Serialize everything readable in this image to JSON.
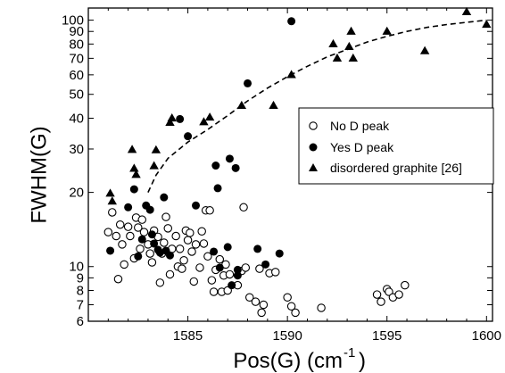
{
  "chart_data": {
    "type": "scatter",
    "xlabel": "Pos(G) (cm",
    "xlabel_sup": "-1",
    "xlabel_close": ")",
    "ylabel": "FWHM(G)",
    "xlim": [
      1580,
      1600.3
    ],
    "ylim": [
      6,
      112
    ],
    "y_scale": "log",
    "x_ticks": [
      "1585",
      "1590",
      "1595",
      "1600"
    ],
    "x_tick_values": [
      1585,
      1590,
      1595,
      1600
    ],
    "y_ticks": [
      "6",
      "7",
      "8",
      "9",
      "10",
      "20",
      "30",
      "40",
      "50",
      "60",
      "70",
      "80",
      "90",
      "100"
    ],
    "y_tick_values": [
      6,
      7,
      8,
      9,
      10,
      20,
      30,
      40,
      50,
      60,
      70,
      80,
      90,
      100
    ],
    "grid": false,
    "legend_position": "right",
    "series": [
      {
        "name": "No D peak",
        "marker": "open-circle",
        "color": "#000000",
        "points": [
          [
            1581.0,
            13.8
          ],
          [
            1581.2,
            16.6
          ],
          [
            1581.4,
            13.3
          ],
          [
            1581.5,
            8.9
          ],
          [
            1581.6,
            14.8
          ],
          [
            1581.7,
            12.3
          ],
          [
            1581.8,
            10.2
          ],
          [
            1582.0,
            14.5
          ],
          [
            1582.1,
            13.3
          ],
          [
            1582.3,
            10.8
          ],
          [
            1582.4,
            15.8
          ],
          [
            1582.5,
            14.4
          ],
          [
            1582.6,
            11.8
          ],
          [
            1582.7,
            15.5
          ],
          [
            1582.8,
            13.8
          ],
          [
            1583.0,
            12.3
          ],
          [
            1583.1,
            11.3
          ],
          [
            1583.2,
            10.4
          ],
          [
            1583.3,
            14.0
          ],
          [
            1583.5,
            13.2
          ],
          [
            1583.6,
            8.6
          ],
          [
            1583.7,
            11.3
          ],
          [
            1583.8,
            12.5
          ],
          [
            1583.9,
            15.9
          ],
          [
            1584.0,
            14.3
          ],
          [
            1584.1,
            9.3
          ],
          [
            1584.2,
            11.8
          ],
          [
            1584.4,
            13.3
          ],
          [
            1584.5,
            10.0
          ],
          [
            1584.6,
            11.8
          ],
          [
            1584.7,
            9.8
          ],
          [
            1584.8,
            10.6
          ],
          [
            1584.9,
            14.0
          ],
          [
            1585.0,
            12.8
          ],
          [
            1585.1,
            13.7
          ],
          [
            1585.2,
            11.5
          ],
          [
            1585.3,
            8.7
          ],
          [
            1585.4,
            12.3
          ],
          [
            1585.6,
            9.9
          ],
          [
            1585.7,
            13.9
          ],
          [
            1585.8,
            12.4
          ],
          [
            1585.9,
            16.9
          ],
          [
            1586.0,
            11.0
          ],
          [
            1586.1,
            16.9
          ],
          [
            1586.2,
            8.8
          ],
          [
            1586.3,
            7.9
          ],
          [
            1586.4,
            9.7
          ],
          [
            1586.6,
            10.7
          ],
          [
            1586.7,
            7.9
          ],
          [
            1586.8,
            9.2
          ],
          [
            1586.9,
            10.2
          ],
          [
            1587.0,
            8.0
          ],
          [
            1587.1,
            9.3
          ],
          [
            1587.5,
            8.4
          ],
          [
            1587.7,
            9.6
          ],
          [
            1587.8,
            17.4
          ],
          [
            1587.9,
            9.9
          ],
          [
            1588.1,
            7.5
          ],
          [
            1588.4,
            7.2
          ],
          [
            1588.6,
            9.8
          ],
          [
            1588.7,
            6.5
          ],
          [
            1588.8,
            7.0
          ],
          [
            1589.1,
            9.4
          ],
          [
            1589.4,
            9.5
          ],
          [
            1590.0,
            7.5
          ],
          [
            1590.2,
            6.9
          ],
          [
            1590.4,
            6.5
          ],
          [
            1591.7,
            6.8
          ],
          [
            1594.5,
            7.7
          ],
          [
            1594.7,
            7.2
          ],
          [
            1595.0,
            8.1
          ],
          [
            1595.1,
            7.9
          ],
          [
            1595.3,
            7.5
          ],
          [
            1595.6,
            7.7
          ],
          [
            1595.9,
            8.4
          ]
        ]
      },
      {
        "name": "Yes D peak",
        "marker": "filled-circle",
        "color": "#000000",
        "points": [
          [
            1581.1,
            11.6
          ],
          [
            1582.0,
            17.4
          ],
          [
            1582.3,
            20.6
          ],
          [
            1582.5,
            11.0
          ],
          [
            1582.7,
            12.9
          ],
          [
            1582.9,
            17.7
          ],
          [
            1583.1,
            17.0
          ],
          [
            1583.2,
            13.5
          ],
          [
            1583.3,
            12.4
          ],
          [
            1583.5,
            11.7
          ],
          [
            1583.6,
            11.4
          ],
          [
            1583.8,
            19.1
          ],
          [
            1583.9,
            11.6
          ],
          [
            1584.1,
            11.1
          ],
          [
            1584.6,
            39.7
          ],
          [
            1585.0,
            33.8
          ],
          [
            1585.4,
            17.7
          ],
          [
            1586.3,
            11.5
          ],
          [
            1586.4,
            25.7
          ],
          [
            1586.5,
            20.8
          ],
          [
            1586.6,
            9.9
          ],
          [
            1587.0,
            12.0
          ],
          [
            1587.1,
            27.4
          ],
          [
            1587.2,
            8.4
          ],
          [
            1587.4,
            25.1
          ],
          [
            1587.5,
            9.7
          ],
          [
            1587.5,
            9.2
          ],
          [
            1588.0,
            55.4
          ],
          [
            1588.5,
            11.8
          ],
          [
            1588.9,
            10.2
          ],
          [
            1589.6,
            11.3
          ],
          [
            1590.2,
            99.0
          ]
        ]
      },
      {
        "name": "disordered graphite [26]",
        "marker": "filled-triangle",
        "color": "#000000",
        "points": [
          [
            1581.1,
            19.8
          ],
          [
            1581.2,
            18.4
          ],
          [
            1582.2,
            29.8
          ],
          [
            1582.3,
            25.0
          ],
          [
            1582.4,
            23.6
          ],
          [
            1583.3,
            25.6
          ],
          [
            1583.4,
            29.7
          ],
          [
            1584.1,
            38.4
          ],
          [
            1584.2,
            40.0
          ],
          [
            1585.8,
            38.6
          ],
          [
            1586.1,
            40.3
          ],
          [
            1587.7,
            45.0
          ],
          [
            1589.3,
            45.0
          ],
          [
            1590.2,
            60.0
          ],
          [
            1592.3,
            80.0
          ],
          [
            1592.5,
            70.0
          ],
          [
            1593.1,
            78.0
          ],
          [
            1593.2,
            90.0
          ],
          [
            1593.3,
            70.0
          ],
          [
            1595.0,
            90.0
          ],
          [
            1596.9,
            75.0
          ],
          [
            1599.0,
            108.0
          ],
          [
            1600.0,
            96.0
          ]
        ]
      }
    ],
    "trend_curve": [
      [
        1583.0,
        20.0
      ],
      [
        1583.4,
        23.5
      ],
      [
        1584.0,
        27.5
      ],
      [
        1585.0,
        32.0
      ],
      [
        1586.0,
        36.0
      ],
      [
        1587.0,
        41.0
      ],
      [
        1588.0,
        47.0
      ],
      [
        1589.0,
        53.0
      ],
      [
        1590.0,
        59.0
      ],
      [
        1591.0,
        65.0
      ],
      [
        1592.0,
        71.0
      ],
      [
        1593.0,
        76.0
      ],
      [
        1594.0,
        81.5
      ],
      [
        1595.0,
        86.0
      ],
      [
        1596.0,
        90.0
      ],
      [
        1597.0,
        93.5
      ],
      [
        1598.0,
        96.0
      ],
      [
        1599.0,
        98.0
      ],
      [
        1600.0,
        100.0
      ]
    ]
  }
}
